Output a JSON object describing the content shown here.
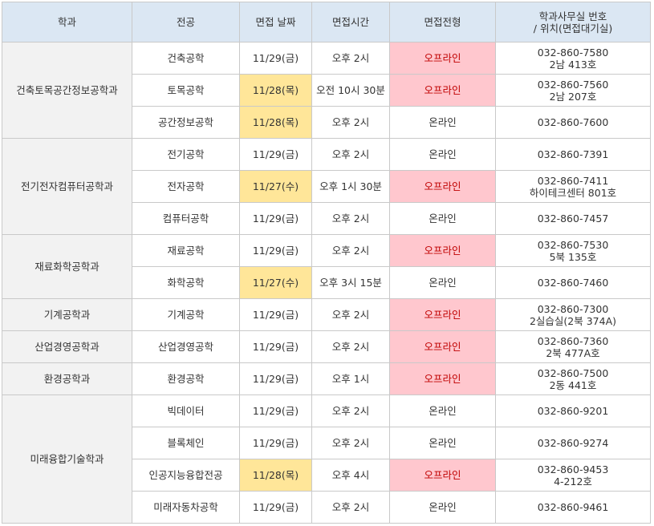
{
  "colors": {
    "header_bg": "#dbe7f3",
    "dept_bg": "#f2f2f2",
    "date_highlight": "#ffe699",
    "offline_bg": "#ffc7ce",
    "offline_text": "#c00000"
  },
  "headers": {
    "dept": "학과",
    "major": "전공",
    "date": "면접 날짜",
    "time": "면접시간",
    "type": "면접전형",
    "office_line1": "학과사무실 번호",
    "office_line2": "/ 위치(면접대기실)"
  },
  "departments": [
    {
      "name": "건축토목공간정보공학과",
      "majors": [
        {
          "major": "건축공학",
          "date": "11/29(금)",
          "date_highlight": false,
          "time": "오후 2시",
          "type": "오프라인",
          "offline": true,
          "phone": "032-860-7580",
          "location": "2남 413호"
        },
        {
          "major": "토목공학",
          "date": "11/28(목)",
          "date_highlight": true,
          "time": "오전 10시 30분",
          "type": "오프라인",
          "offline": true,
          "phone": "032-860-7560",
          "location": "2남 207호"
        },
        {
          "major": "공간정보공학",
          "date": "11/28(목)",
          "date_highlight": true,
          "time": "오후 2시",
          "type": "온라인",
          "offline": false,
          "phone": "032-860-7600",
          "location": ""
        }
      ]
    },
    {
      "name": "전기전자컴퓨터공학과",
      "majors": [
        {
          "major": "전기공학",
          "date": "11/29(금)",
          "date_highlight": false,
          "time": "오후 2시",
          "type": "온라인",
          "offline": false,
          "phone": "032-860-7391",
          "location": ""
        },
        {
          "major": "전자공학",
          "date": "11/27(수)",
          "date_highlight": true,
          "time": "오후 1시 30분",
          "type": "오프라인",
          "offline": true,
          "phone": "032-860-7411",
          "location": "하이테크센터 801호"
        },
        {
          "major": "컴퓨터공학",
          "date": "11/29(금)",
          "date_highlight": false,
          "time": "오후 2시",
          "type": "온라인",
          "offline": false,
          "phone": "032-860-7457",
          "location": ""
        }
      ]
    },
    {
      "name": "재료화학공학과",
      "majors": [
        {
          "major": "재료공학",
          "date": "11/29(금)",
          "date_highlight": false,
          "time": "오후 2시",
          "type": "오프라인",
          "offline": true,
          "phone": "032-860-7530",
          "location": "5북 135호"
        },
        {
          "major": "화학공학",
          "date": "11/27(수)",
          "date_highlight": true,
          "time": "오후 3시 15분",
          "type": "온라인",
          "offline": false,
          "phone": "032-860-7460",
          "location": ""
        }
      ]
    },
    {
      "name": "기계공학과",
      "majors": [
        {
          "major": "기계공학",
          "date": "11/29(금)",
          "date_highlight": false,
          "time": "오후 2시",
          "type": "오프라인",
          "offline": true,
          "phone": "032-860-7300",
          "location": "2실습실(2북 374A)"
        }
      ]
    },
    {
      "name": "산업경영공학과",
      "majors": [
        {
          "major": "산업경영공학",
          "date": "11/29(금)",
          "date_highlight": false,
          "time": "오후 2시",
          "type": "오프라인",
          "offline": true,
          "phone": "032-860-7360",
          "location": "2북 477A호"
        }
      ]
    },
    {
      "name": "환경공학과",
      "majors": [
        {
          "major": "환경공학",
          "date": "11/29(금)",
          "date_highlight": false,
          "time": "오후 1시",
          "type": "오프라인",
          "offline": true,
          "phone": "032-860-7500",
          "location": "2동 441호"
        }
      ]
    },
    {
      "name": "미래융합기술학과",
      "majors": [
        {
          "major": "빅데이터",
          "date": "11/29(금)",
          "date_highlight": false,
          "time": "오후 2시",
          "type": "온라인",
          "offline": false,
          "phone": "032-860-9201",
          "location": ""
        },
        {
          "major": "블록체인",
          "date": "11/29(금)",
          "date_highlight": false,
          "time": "오후 2시",
          "type": "온라인",
          "offline": false,
          "phone": "032-860-9274",
          "location": ""
        },
        {
          "major": "인공지능융합전공",
          "date": "11/28(목)",
          "date_highlight": true,
          "time": "오후 4시",
          "type": "오프라인",
          "offline": true,
          "phone": "032-860-9453",
          "location": "4-212호"
        },
        {
          "major": "미래자동차공학",
          "date": "11/29(금)",
          "date_highlight": false,
          "time": "오후 2시",
          "type": "온라인",
          "offline": false,
          "phone": "032-860-9461",
          "location": ""
        }
      ]
    }
  ]
}
